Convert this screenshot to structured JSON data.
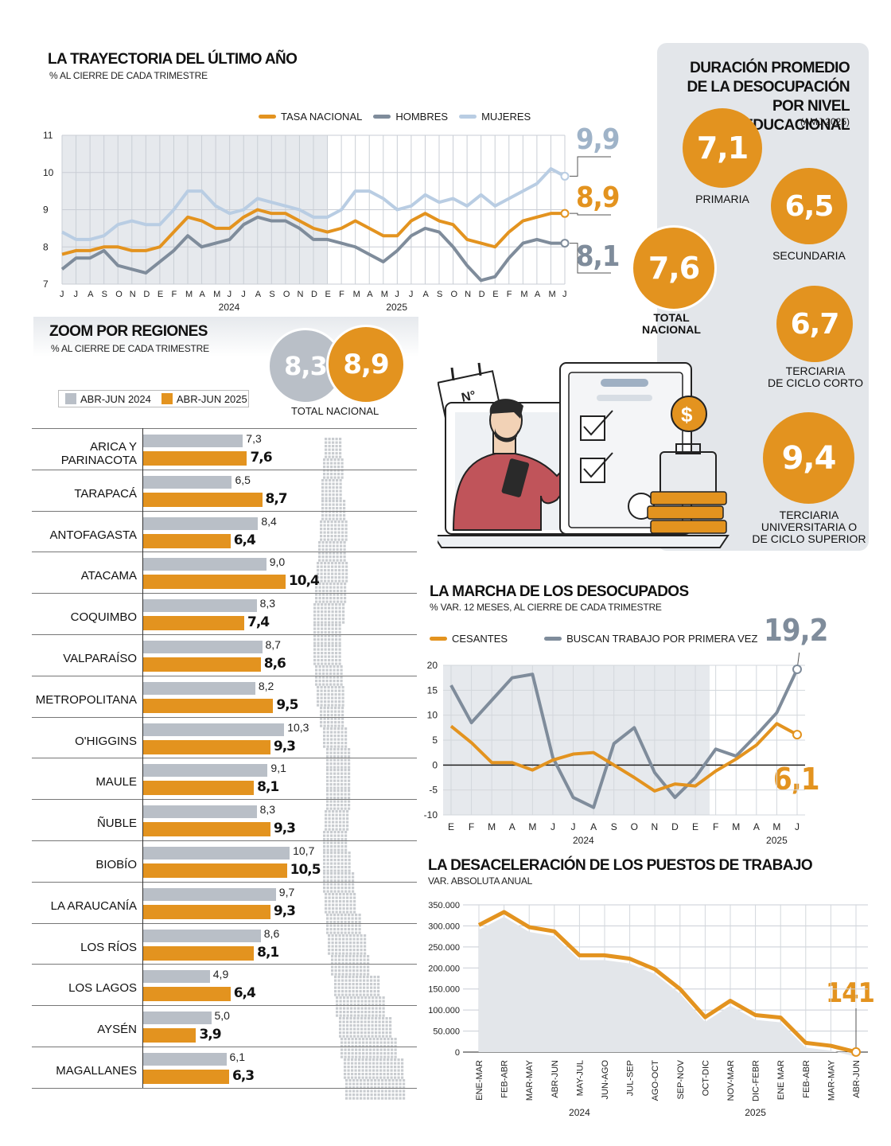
{
  "colors": {
    "orange": "#e3931f",
    "dark_gray": "#7f8c9b",
    "light_blue": "#b9cde3",
    "bar_gray": "#b9bfc7",
    "panel": "#e3e6ea"
  },
  "trayectoria": {
    "title": "LA TRAYECTORIA DEL ÚLTIMO AÑO",
    "subtitle": "% AL CIERRE DE CADA TRIMESTRE",
    "legend": [
      "TASA NACIONAL",
      "HOMBRES",
      "MUJERES"
    ],
    "end_labels": {
      "mujeres": "9,9",
      "nacional": "8,9",
      "hombres": "8,1"
    }
  },
  "duracion": {
    "title_lines": [
      "DURACIÓN PROMEDIO",
      "DE LA DESOCUPACIÓN",
      "POR NIVEL EDUCACIONAL"
    ],
    "note": "(AMJ 2025)",
    "items": [
      {
        "value": "7,1",
        "label": "PRIMARIA"
      },
      {
        "value": "6,5",
        "label": "SECUNDARIA"
      },
      {
        "value": "7,6",
        "label": "TOTAL NACIONAL"
      },
      {
        "value": "6,7",
        "label": "TERCIARIA DE CICLO CORTO"
      },
      {
        "value": "9,4",
        "label": "TERCIARIA UNIVERSITARIA O DE CICLO SUPERIOR"
      }
    ]
  },
  "regiones": {
    "title": "ZOOM POR REGIONES",
    "subtitle": "% AL CIERRE DE CADA TRIMESTRE",
    "legend_2024": "ABR-JUN 2024",
    "legend_2025": "ABR-JUN 2025",
    "total_label": "TOTAL NACIONAL",
    "total_2024": "8,3",
    "total_2025": "8,9",
    "rows": [
      {
        "name": "ARICA Y PARINACOTA",
        "v24": "7,3",
        "v25": "7,6"
      },
      {
        "name": "TARAPACÁ",
        "v24": "6,5",
        "v25": "8,7"
      },
      {
        "name": "ANTOFAGASTA",
        "v24": "8,4",
        "v25": "6,4"
      },
      {
        "name": "ATACAMA",
        "v24": "9,0",
        "v25": "10,4"
      },
      {
        "name": "COQUIMBO",
        "v24": "8,3",
        "v25": "7,4"
      },
      {
        "name": "VALPARAÍSO",
        "v24": "8,7",
        "v25": "8,6"
      },
      {
        "name": "METROPOLITANA",
        "v24": "8,2",
        "v25": "9,5"
      },
      {
        "name": "O'HIGGINS",
        "v24": "10,3",
        "v25": "9,3"
      },
      {
        "name": "MAULE",
        "v24": "9,1",
        "v25": "8,1"
      },
      {
        "name": "ÑUBLE",
        "v24": "8,3",
        "v25": "9,3"
      },
      {
        "name": "BIOBÍO",
        "v24": "10,7",
        "v25": "10,5"
      },
      {
        "name": "LA ARAUCANÍA",
        "v24": "9,7",
        "v25": "9,3"
      },
      {
        "name": "LOS RÍOS",
        "v24": "8,6",
        "v25": "8,1"
      },
      {
        "name": "LOS LAGOS",
        "v24": "4,9",
        "v25": "6,4"
      },
      {
        "name": "AYSÉN",
        "v24": "5,0",
        "v25": "3,9"
      },
      {
        "name": "MAGALLANES",
        "v24": "6,1",
        "v25": "6,3"
      }
    ]
  },
  "illustration": {
    "badge_text": "N°"
  },
  "marcha": {
    "title": "LA MARCHA DE LOS DESOCUPADOS",
    "subtitle": "% VAR. 12 MESES, AL CIERRE DE CADA TRIMESTRE",
    "legend": [
      "CESANTES",
      "BUSCAN TRABAJO POR PRIMERA VEZ"
    ],
    "end_labels": {
      "primera": "19,2",
      "cesantes": "6,1"
    }
  },
  "puestos": {
    "title": "LA DESACELERACIÓN DE LOS PUESTOS DE TRABAJO",
    "subtitle": "VAR. ABSOLUTA ANUAL",
    "end_label": "141"
  },
  "chart_data": [
    {
      "type": "line",
      "title": "LA TRAYECTORIA DEL ÚLTIMO AÑO",
      "subtitle": "% AL CIERRE DE CADA TRIMESTRE",
      "x": [
        "J",
        "J",
        "A",
        "S",
        "O",
        "N",
        "D",
        "E",
        "F",
        "M",
        "A",
        "M",
        "J",
        "J",
        "A",
        "S",
        "O",
        "N",
        "D",
        "E",
        "F",
        "M",
        "A",
        "M",
        "J",
        "J",
        "A",
        "S",
        "O",
        "N",
        "D",
        "E",
        "F",
        "M",
        "A",
        "M",
        "J"
      ],
      "year_labels": [
        {
          "label": "2024",
          "at": 12
        },
        {
          "label": "2025",
          "at": 24
        }
      ],
      "ylim": [
        7,
        11
      ],
      "yticks": [
        7,
        8,
        9,
        10,
        11
      ],
      "shaded_until_index": 19,
      "series": [
        {
          "name": "TASA NACIONAL",
          "color": "#e3931f",
          "values": [
            7.8,
            7.9,
            7.9,
            8.0,
            8.0,
            7.9,
            7.9,
            8.0,
            8.4,
            8.8,
            8.7,
            8.5,
            8.5,
            8.8,
            9.0,
            8.9,
            8.9,
            8.7,
            8.5,
            8.4,
            8.5,
            8.7,
            8.5,
            8.3,
            8.3,
            8.7,
            8.9,
            8.7,
            8.6,
            8.2,
            8.1,
            8.0,
            8.4,
            8.7,
            8.8,
            8.9,
            8.9
          ]
        },
        {
          "name": "HOMBRES",
          "color": "#7f8c9b",
          "values": [
            7.4,
            7.7,
            7.7,
            7.9,
            7.5,
            7.4,
            7.3,
            7.6,
            7.9,
            8.3,
            8.0,
            8.1,
            8.2,
            8.6,
            8.8,
            8.7,
            8.7,
            8.5,
            8.2,
            8.2,
            8.1,
            8.0,
            7.8,
            7.6,
            7.9,
            8.3,
            8.5,
            8.4,
            8.0,
            7.5,
            7.1,
            7.2,
            7.7,
            8.1,
            8.2,
            8.1,
            8.1
          ]
        },
        {
          "name": "MUJERES",
          "color": "#b9cde3",
          "values": [
            8.4,
            8.2,
            8.2,
            8.3,
            8.6,
            8.7,
            8.6,
            8.6,
            9.0,
            9.5,
            9.5,
            9.1,
            8.9,
            9.0,
            9.3,
            9.2,
            9.1,
            9.0,
            8.8,
            8.8,
            9.0,
            9.5,
            9.5,
            9.3,
            9.0,
            9.1,
            9.4,
            9.2,
            9.3,
            9.1,
            9.4,
            9.1,
            9.3,
            9.5,
            9.7,
            10.1,
            9.9
          ]
        }
      ],
      "end_labels": {
        "MUJERES": 9.9,
        "TASA NACIONAL": 8.9,
        "HOMBRES": 8.1
      }
    },
    {
      "type": "line",
      "title": "LA MARCHA DE LOS DESOCUPADOS",
      "subtitle": "% VAR. 12 MESES, AL CIERRE DE CADA TRIMESTRE",
      "x": [
        "E",
        "F",
        "M",
        "A",
        "M",
        "J",
        "J",
        "A",
        "S",
        "O",
        "N",
        "D",
        "E",
        "F",
        "M",
        "A",
        "M",
        "J"
      ],
      "year_labels": [
        {
          "label": "2024",
          "at": 6.5
        },
        {
          "label": "2025",
          "at": 16
        }
      ],
      "ylim": [
        -10,
        20
      ],
      "yticks": [
        -10,
        -5,
        0,
        5,
        10,
        15,
        20
      ],
      "shaded_until_index": 12.7,
      "series": [
        {
          "name": "CESANTES",
          "color": "#e3931f",
          "values": [
            7.8,
            4.5,
            0.5,
            0.5,
            -1.0,
            1.0,
            2.2,
            2.5,
            0.0,
            -2.5,
            -5.2,
            -3.8,
            -4.2,
            -1.2,
            1.2,
            4.0,
            8.3,
            6.1
          ]
        },
        {
          "name": "BUSCAN TRABAJO POR PRIMERA VEZ",
          "color": "#7f8c9b",
          "values": [
            16.0,
            8.5,
            13.0,
            17.5,
            18.2,
            1.5,
            -6.5,
            -8.5,
            4.3,
            7.5,
            -1.5,
            -6.5,
            -2.5,
            3.2,
            1.8,
            6.0,
            10.5,
            19.2
          ]
        }
      ],
      "end_labels": {
        "BUSCAN TRABAJO POR PRIMERA VEZ": 19.2,
        "CESANTES": 6.1
      }
    },
    {
      "type": "area",
      "title": "LA DESACELERACIÓN DE LOS PUESTOS DE TRABAJO",
      "subtitle": "VAR. ABSOLUTA ANUAL",
      "categories": [
        "ENE-MAR",
        "FEB-ABR",
        "MAR-MAY",
        "ABR-JUN",
        "MAY-JUL",
        "JUN-AGO",
        "JUL-SEP",
        "AGO-OCT",
        "SEP-NOV",
        "OCT-DIC",
        "NOV-MAR",
        "DIC-FEBR",
        "ENE MAR",
        "FEB-ABR",
        "MAR-MAY",
        "ABR-JUN"
      ],
      "year_labels": [
        {
          "label": "2024",
          "at": 4
        },
        {
          "label": "2025",
          "at": 11
        }
      ],
      "ylim": [
        0,
        350000
      ],
      "ytick_labels": [
        "0",
        "50.000",
        "100.000",
        "150.000",
        "200.000",
        "250.000",
        "300.000",
        "350.000"
      ],
      "series": [
        {
          "name": "",
          "color": "#e3931f",
          "values": [
            302000,
            333000,
            297000,
            287000,
            230000,
            230000,
            222000,
            197000,
            150000,
            83000,
            122000,
            88000,
            82000,
            22000,
            15000,
            141
          ]
        }
      ],
      "end_label": "141"
    }
  ]
}
